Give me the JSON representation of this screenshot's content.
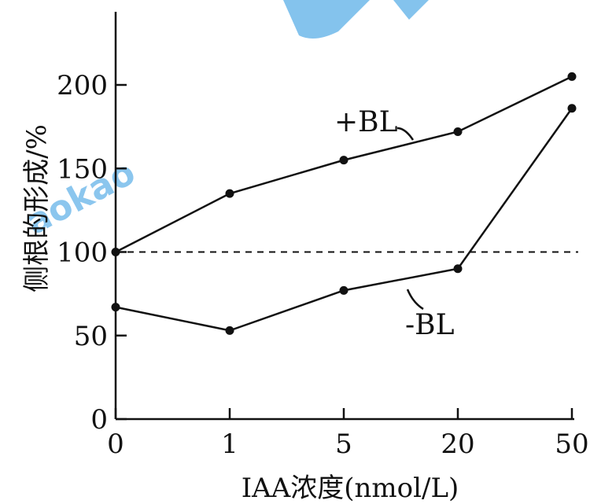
{
  "chart_data": {
    "type": "line",
    "xlabel": "IAA浓度(nmol/L)",
    "ylabel": "侧根的形成/%",
    "categories": [
      "0",
      "1",
      "5",
      "20",
      "50"
    ],
    "yticks": [
      0,
      50,
      100,
      150,
      200
    ],
    "ylim": [
      0,
      200
    ],
    "grid": false,
    "reference_line": {
      "y": 100,
      "style": "dashed"
    },
    "series": [
      {
        "name": "+BL",
        "values": [
          100,
          135,
          155,
          172,
          205
        ]
      },
      {
        "name": "-BL",
        "values": [
          67,
          53,
          77,
          90,
          186
        ]
      }
    ]
  }
}
